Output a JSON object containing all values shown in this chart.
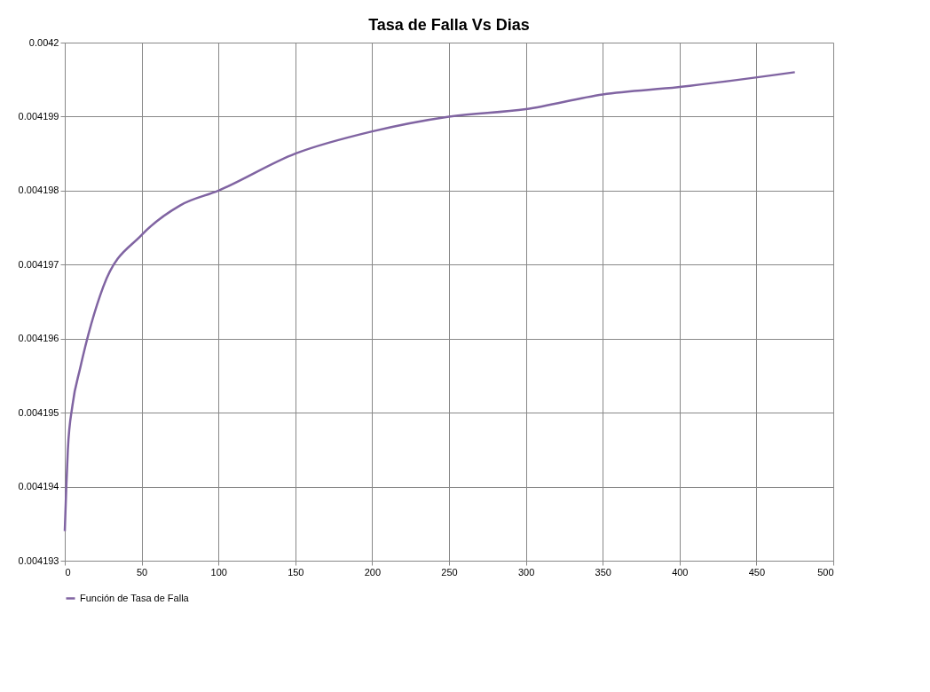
{
  "chart_data": {
    "type": "line",
    "title": "Tasa de Falla Vs Dias",
    "x": [
      0,
      1,
      2,
      5,
      10,
      25,
      50,
      75,
      100,
      150,
      200,
      250,
      300,
      350,
      400,
      475
    ],
    "series": [
      {
        "name": "Función de Tasa de Falla",
        "color": "#8064a2",
        "values": [
          0.0041934,
          0.004194,
          0.0041945,
          0.0041951,
          0.0041956,
          0.0041967,
          0.0041974,
          0.0041978,
          0.004198,
          0.0041985,
          0.0041988,
          0.004199,
          0.0041991,
          0.0041993,
          0.0041994,
          0.0041996
        ]
      }
    ],
    "xlim": [
      0,
      500
    ],
    "xticks": [
      0,
      50,
      100,
      150,
      200,
      250,
      300,
      350,
      400,
      450,
      500
    ],
    "ylim": [
      0.004193,
      0.0042
    ],
    "yticks": [
      0.004193,
      0.004194,
      0.004195,
      0.004196,
      0.004197,
      0.004198,
      0.004199,
      0.0042
    ],
    "grid": true,
    "legend": "bottom",
    "marker": "none",
    "line_style": "solid"
  }
}
